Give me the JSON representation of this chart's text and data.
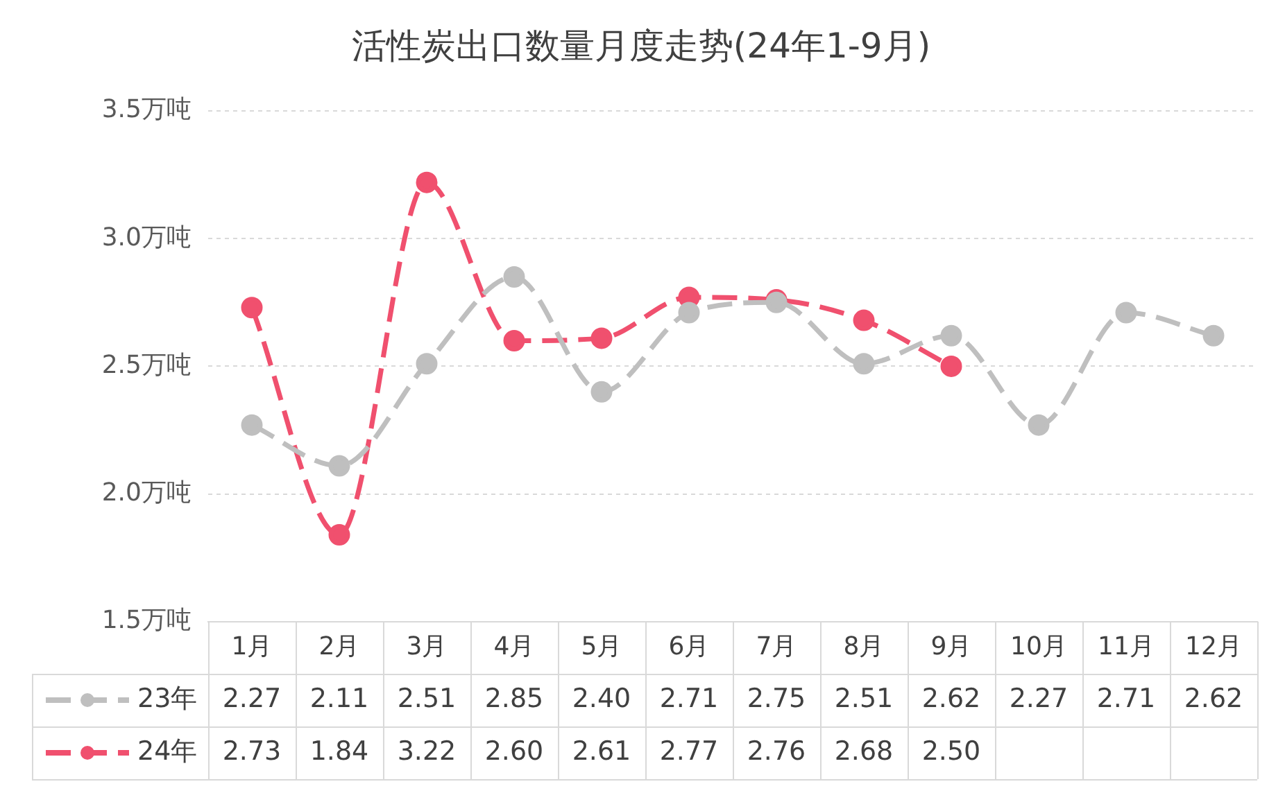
{
  "chart_data": {
    "type": "line",
    "title": "活性炭出口数量月度走势(24年1-9月)",
    "categories": [
      "1月",
      "2月",
      "3月",
      "4月",
      "5月",
      "6月",
      "7月",
      "8月",
      "9月",
      "10月",
      "11月",
      "12月"
    ],
    "series": [
      {
        "name": "23年",
        "color": "#bfbfbf",
        "values": [
          2.27,
          2.11,
          2.51,
          2.85,
          2.4,
          2.71,
          2.75,
          2.51,
          2.62,
          2.27,
          2.71,
          2.62
        ],
        "value_labels": [
          "2.27",
          "2.11",
          "2.51",
          "2.85",
          "2.40",
          "2.71",
          "2.75",
          "2.51",
          "2.62",
          "2.27",
          "2.71",
          "2.62"
        ]
      },
      {
        "name": "24年",
        "color": "#f0506e",
        "values": [
          2.73,
          1.84,
          3.22,
          2.6,
          2.61,
          2.77,
          2.76,
          2.68,
          2.5,
          null,
          null,
          null
        ],
        "value_labels": [
          "2.73",
          "1.84",
          "3.22",
          "2.60",
          "2.61",
          "2.77",
          "2.76",
          "2.68",
          "2.50",
          null,
          null,
          null
        ]
      }
    ],
    "ylim": [
      1.5,
      3.5
    ],
    "yticks": [
      {
        "value": 1.5,
        "label": "1.5万吨"
      },
      {
        "value": 2.0,
        "label": "2.0万吨"
      },
      {
        "value": 2.5,
        "label": "2.5万吨"
      },
      {
        "value": 3.0,
        "label": "3.0万吨"
      },
      {
        "value": 3.5,
        "label": "3.5万吨"
      }
    ],
    "grid": "y",
    "legend": "bottom",
    "marker": "circle",
    "line_style": "dashed"
  }
}
